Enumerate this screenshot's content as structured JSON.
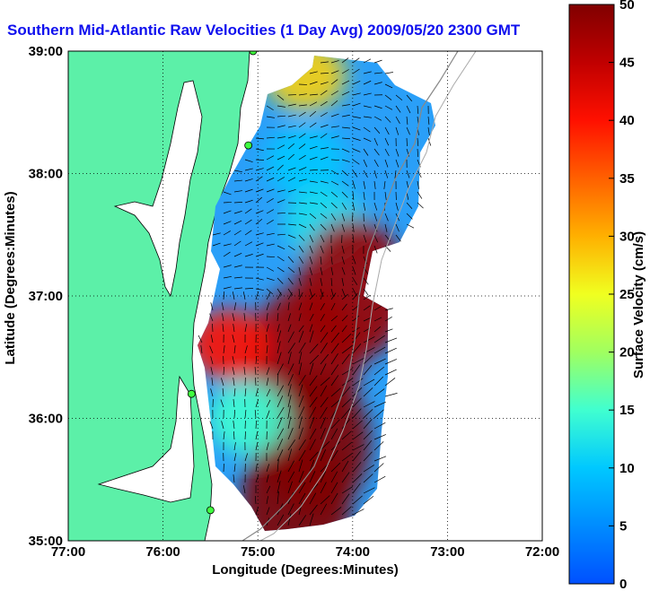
{
  "title": "Southern Mid-Atlantic Raw Velocities (1 Day Avg) 2009/05/20 2300 GMT",
  "xaxis": {
    "label": "Longitude (Degrees:Minutes)",
    "ticks": [
      "77:00",
      "76:00",
      "75:00",
      "74:00",
      "73:00",
      "72:00"
    ],
    "range": [
      -77,
      -72
    ]
  },
  "yaxis": {
    "label": "Latitude (Degrees:Minutes)",
    "ticks": [
      "35:00",
      "36:00",
      "37:00",
      "38:00",
      "39:00"
    ],
    "range": [
      35,
      39
    ]
  },
  "colorbar": {
    "label": "Surface Velocity (cm/s)",
    "ticks": [
      "0",
      "5",
      "10",
      "15",
      "20",
      "25",
      "30",
      "35",
      "40",
      "45",
      "50"
    ],
    "range": [
      0,
      50
    ]
  },
  "colors": {
    "land": "#5cf0a8",
    "title": "#1010ee",
    "vector": "#000000"
  },
  "grid": true,
  "stations": [
    {
      "lon": -75.05,
      "lat": 39.0
    },
    {
      "lon": -75.1,
      "lat": 38.23
    },
    {
      "lon": -75.7,
      "lat": 36.2
    },
    {
      "lon": -75.5,
      "lat": 35.25
    }
  ],
  "chart_data": {
    "type": "heatmap",
    "title": "Southern Mid-Atlantic Raw Velocities (1 Day Avg) 2009/05/20 2300 GMT",
    "xlabel": "Longitude (Degrees:Minutes)",
    "ylabel": "Latitude (Degrees:Minutes)",
    "xlim": [
      -77,
      -72
    ],
    "ylim": [
      35,
      39
    ],
    "value_range_cm_s": [
      0,
      50
    ],
    "regions": [
      {
        "lon": -74.5,
        "lat": 38.1,
        "speed": 10
      },
      {
        "lon": -74.3,
        "lat": 37.6,
        "speed": 12
      },
      {
        "lon": -74.0,
        "lat": 37.05,
        "speed": 48
      },
      {
        "lon": -74.5,
        "lat": 36.5,
        "speed": 48
      },
      {
        "lon": -74.4,
        "lat": 35.8,
        "speed": 50
      },
      {
        "lon": -74.6,
        "lat": 35.3,
        "speed": 50
      },
      {
        "lon": -75.3,
        "lat": 36.6,
        "speed": 40
      },
      {
        "lon": -75.1,
        "lat": 36.0,
        "speed": 15
      },
      {
        "lon": -74.5,
        "lat": 38.8,
        "speed": 28
      }
    ]
  }
}
